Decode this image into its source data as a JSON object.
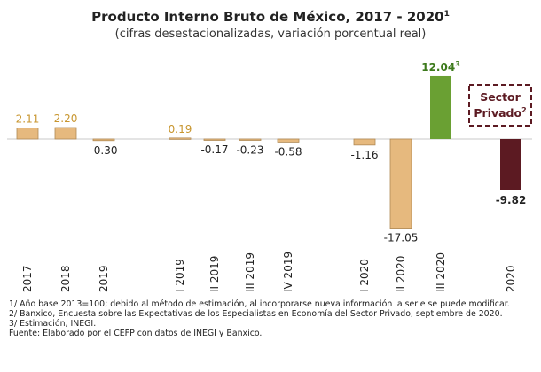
{
  "chart_data": {
    "type": "bar",
    "title": "Producto Interno Bruto de México, 2017 - 2020",
    "title_sup": "1",
    "subtitle": "(cifras desestacionalizadas, variación  porcentual real)",
    "ylim": [
      -17.05,
      12.04
    ],
    "grid": false,
    "categories": [
      "2017",
      "2018",
      "2019",
      "I 2019",
      "II 2019",
      "III 2019",
      "IV 2019",
      "I 2020",
      "II 2020",
      "III 2020",
      "2020"
    ],
    "values": [
      2.11,
      2.2,
      -0.3,
      0.19,
      -0.17,
      -0.23,
      -0.58,
      -1.16,
      -17.05,
      12.04,
      -9.82
    ],
    "labels": [
      "2.11",
      "2.20",
      "-0.30",
      "0.19",
      "-0.17",
      "-0.23",
      "-0.58",
      "-1.16",
      "-17.05",
      "12.04",
      "-9.82"
    ],
    "label_sups": [
      "",
      "",
      "",
      "",
      "",
      "",
      "",
      "",
      "",
      "3",
      ""
    ],
    "colors": [
      "#e6b97e",
      "#e6b97e",
      "#e6b97e",
      "#e6b97e",
      "#e6b97e",
      "#e6b97e",
      "#e6b97e",
      "#e6b97e",
      "#e6b97e",
      "#6aa033",
      "#5c1a22"
    ],
    "label_colors": [
      "#c8962f",
      "#c8962f",
      "#222222",
      "#c8962f",
      "#222222",
      "#222222",
      "#222222",
      "#222222",
      "#222222",
      "#3d7a1c",
      "#222222"
    ],
    "category_sups": [
      "",
      "",
      "",
      "",
      "",
      "",
      "",
      "",
      "",
      "",
      ""
    ],
    "annotation": {
      "line1": "Sector",
      "line2": "Privado",
      "sup": "2",
      "color": "#5c1a22"
    }
  },
  "notes": [
    "1/ Año base 2013=100; debido al método de estimación, al incorporarse nueva información la serie se puede modificar.",
    "2/ Banxico, Encuesta sobre las Expectativas de los Especialistas en Economía del Sector Privado, septiembre de 2020.",
    "3/ Estimación, INEGI.",
    "Fuente: Elaborado por el CEFP con datos de INEGI y Banxico."
  ]
}
